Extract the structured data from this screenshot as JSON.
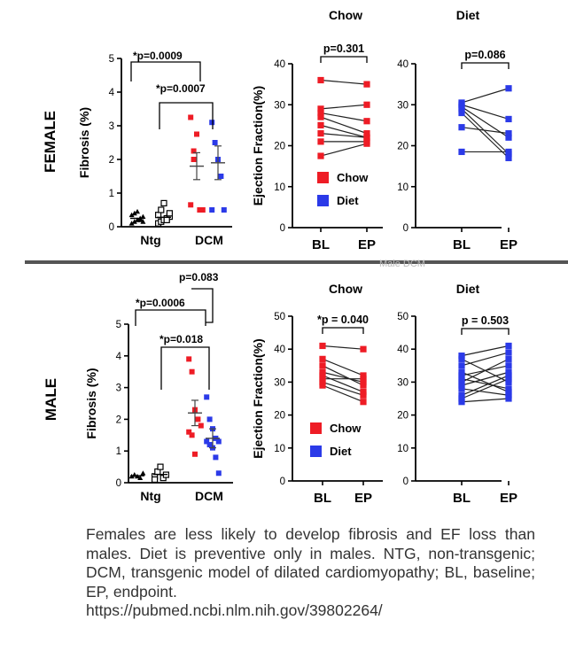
{
  "rows": {
    "female_label": "FEMALE",
    "male_label": "MALE"
  },
  "colors": {
    "chow": "#ee1c25",
    "diet": "#2b3ae8",
    "ntg": "#000000"
  },
  "caption": {
    "text": "Females are less likely to develop fibrosis and EF loss than males. Diet is preventive only in males. NTG, non-transgenic; DCM, transgenic model of dilated cardiomyopathy; BL, baseline; EP, endpoint.",
    "url": "https://pubmed.ncbi.nlm.nih.gov/39802264/"
  },
  "chart_data": [
    {
      "id": "female-fibrosis",
      "type": "scatter",
      "ylabel": "Fibrosis (%)",
      "ylim": [
        0,
        5
      ],
      "yticks": [
        "0",
        "1",
        "2",
        "3",
        "4",
        "5"
      ],
      "categories": [
        "Ntg",
        "DCM"
      ],
      "annotations": [
        "*p=0.0009",
        "*p=0.0007"
      ],
      "groups": [
        {
          "category": "Ntg",
          "series": "Chow",
          "values": [
            0.1,
            0.15,
            0.2,
            0.25,
            0.3,
            0.35,
            0.4,
            0.45,
            0.2,
            0.15
          ],
          "mean": 0.25
        },
        {
          "category": "Ntg",
          "series": "Diet",
          "values": [
            0.1,
            0.15,
            0.2,
            0.25,
            0.3,
            0.35,
            0.5,
            0.7,
            0.2,
            0.4
          ],
          "mean": 0.28
        },
        {
          "category": "DCM",
          "series": "Chow",
          "values": [
            3.25,
            2.25,
            2.75,
            0.5,
            0.5,
            0.65,
            2.0
          ],
          "mean": 1.8,
          "sem": [
            1.4,
            2.2
          ]
        },
        {
          "category": "DCM",
          "series": "Diet",
          "values": [
            3.1,
            2.5,
            2.0,
            1.5,
            0.5,
            0.5
          ],
          "mean": 1.9,
          "sem": [
            1.4,
            2.4
          ]
        }
      ]
    },
    {
      "id": "female-ef-chow",
      "type": "line",
      "title": "Chow",
      "ylabel": "Ejection Fraction(%)",
      "ylim": [
        0,
        40
      ],
      "yticks": [
        "0",
        "10",
        "20",
        "30",
        "40"
      ],
      "categories": [
        "BL",
        "EP"
      ],
      "annotation": "p=0.301",
      "legend": [
        "Chow",
        "Diet"
      ],
      "pairs": [
        [
          36,
          35
        ],
        [
          29,
          30
        ],
        [
          28,
          26
        ],
        [
          27,
          23
        ],
        [
          25,
          22
        ],
        [
          23,
          22
        ],
        [
          21,
          21
        ],
        [
          17.5,
          20.5
        ]
      ]
    },
    {
      "id": "female-ef-diet",
      "type": "line",
      "title": "Diet",
      "ylim": [
        0,
        40
      ],
      "yticks": [
        "0",
        "10",
        "20",
        "30",
        "40"
      ],
      "categories": [
        "BL",
        "EP"
      ],
      "annotation": "p=0.086",
      "pairs": [
        [
          30.5,
          34
        ],
        [
          30,
          26.5
        ],
        [
          29.5,
          22
        ],
        [
          29,
          18
        ],
        [
          24.5,
          23
        ],
        [
          18.5,
          18.5
        ],
        [
          28,
          17
        ]
      ]
    },
    {
      "id": "male-fibrosis",
      "type": "scatter",
      "ylabel": "Fibrosis (%)",
      "ylim": [
        0,
        5
      ],
      "yticks": [
        "0",
        "1",
        "2",
        "3",
        "4",
        "5"
      ],
      "categories": [
        "Ntg",
        "DCM"
      ],
      "annotations": [
        "*p=0.0006",
        "*p=0.018",
        "p=0.083"
      ],
      "groups": [
        {
          "category": "Ntg",
          "series": "Chow",
          "values": [
            0.2,
            0.25,
            0.2,
            0.15,
            0.3
          ],
          "mean": 0.22
        },
        {
          "category": "Ntg",
          "series": "Diet",
          "values": [
            0.2,
            0.35,
            0.5,
            0.15,
            0.25,
            0.1
          ],
          "mean": 0.26
        },
        {
          "category": "DCM",
          "series": "Chow",
          "values": [
            3.9,
            3.5,
            2.3,
            2.0,
            1.8,
            1.6,
            1.5,
            0.9
          ],
          "mean": 2.2,
          "sem": [
            1.8,
            2.6
          ]
        },
        {
          "category": "DCM",
          "series": "Diet",
          "values": [
            2.7,
            2.0,
            1.7,
            1.4,
            1.3,
            1.3,
            1.2,
            1.1,
            0.8,
            0.3
          ],
          "mean": 1.4,
          "sem": [
            1.1,
            1.7
          ]
        }
      ]
    },
    {
      "id": "male-ef-chow",
      "type": "line",
      "title": "Chow",
      "ylabel": "Ejection Fraction(%)",
      "ylim": [
        0,
        50
      ],
      "yticks": [
        "0",
        "10",
        "20",
        "30",
        "40",
        "50"
      ],
      "categories": [
        "BL",
        "EP"
      ],
      "annotation": "*p = 0.040",
      "legend": [
        "Chow",
        "Diet"
      ],
      "pairs": [
        [
          41,
          40
        ],
        [
          37,
          32
        ],
        [
          35,
          29
        ],
        [
          33,
          30
        ],
        [
          32,
          27
        ],
        [
          31,
          31
        ],
        [
          30,
          26
        ],
        [
          29,
          24
        ]
      ]
    },
    {
      "id": "male-ef-diet",
      "type": "line",
      "title": "Diet",
      "ylim": [
        0,
        50
      ],
      "yticks": [
        "0",
        "10",
        "20",
        "30",
        "40",
        "50"
      ],
      "categories": [
        "BL",
        "EP"
      ],
      "annotation": "p = 0.503",
      "pairs": [
        [
          38,
          41
        ],
        [
          37,
          30
        ],
        [
          35,
          39
        ],
        [
          33,
          27
        ],
        [
          32,
          35
        ],
        [
          31,
          28
        ],
        [
          30,
          37
        ],
        [
          29,
          33
        ],
        [
          28,
          26
        ],
        [
          26,
          32
        ],
        [
          25,
          31
        ],
        [
          24,
          25
        ]
      ]
    }
  ]
}
